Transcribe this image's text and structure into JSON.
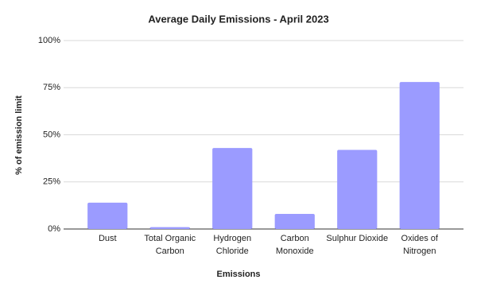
{
  "chart_data": {
    "type": "bar",
    "title": "Average Daily Emissions - April 2023",
    "x_label": "Emissions",
    "y_label": "% of emission limit",
    "categories": [
      "Dust",
      "Total Organic Carbon",
      "Hydrogen Chloride",
      "Carbon Monoxide",
      "Sulphur Dioxide",
      "Oxides of Nitrogen"
    ],
    "values": [
      14,
      1,
      43,
      8,
      42,
      78
    ],
    "color": "#9b9bff",
    "ylim": [
      0,
      100
    ],
    "yticks": [
      {
        "value": 0,
        "label": "0%"
      },
      {
        "value": 25,
        "label": "25%"
      },
      {
        "value": 50,
        "label": "50%"
      },
      {
        "value": 75,
        "label": "75%"
      },
      {
        "value": 100,
        "label": "100%"
      }
    ],
    "grid": true
  }
}
